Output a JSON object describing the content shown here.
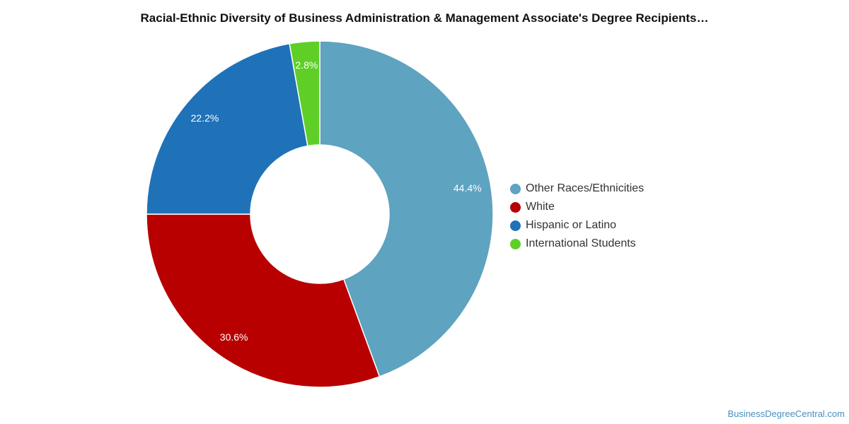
{
  "chart_data": {
    "type": "pie",
    "title": "Racial-Ethnic Diversity of Business Administration & Management Associate's Degree Recipients…",
    "donut": true,
    "legend_position": "right",
    "slices": [
      {
        "label": "Other Races/Ethnicities",
        "value": 44.4,
        "display": "44.4%",
        "color": "#5ea3c0"
      },
      {
        "label": "White",
        "value": 30.6,
        "display": "30.6%",
        "color": "#b80000"
      },
      {
        "label": "Hispanic or Latino",
        "value": 22.2,
        "display": "22.2%",
        "color": "#1f72b8"
      },
      {
        "label": "International Students",
        "value": 2.8,
        "display": "2.8%",
        "color": "#5fcf27"
      }
    ]
  },
  "footer": {
    "credit": "BusinessDegreeCentral.com"
  }
}
